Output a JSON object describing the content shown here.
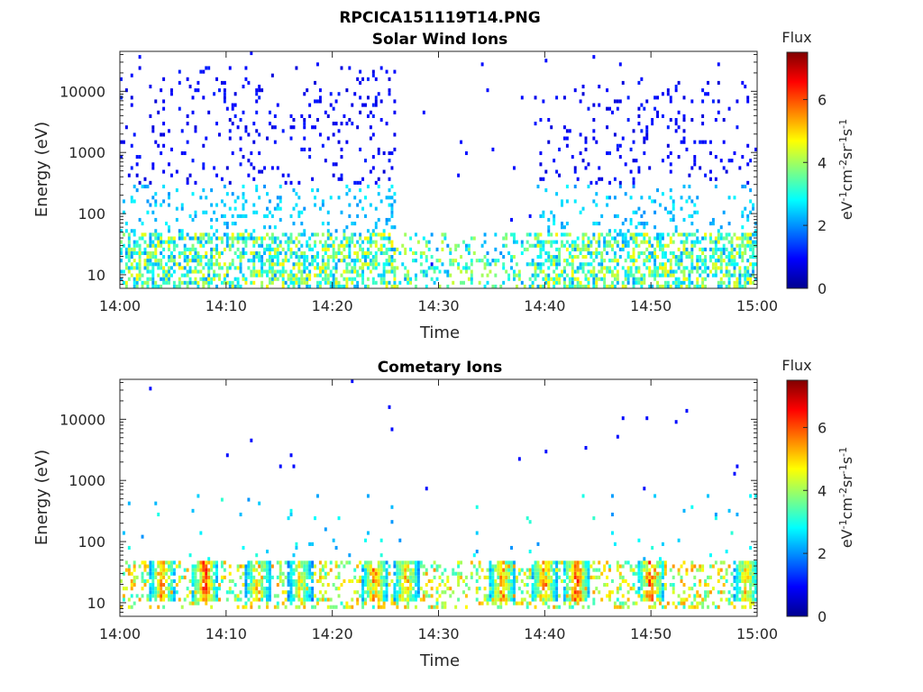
{
  "figure_title": "RPCICA151119T14.PNG",
  "colors": {
    "colormap": [
      "#00008f",
      "#0000ff",
      "#0080ff",
      "#00ffff",
      "#80ff80",
      "#ffff00",
      "#ff8000",
      "#ff0000",
      "#800000"
    ]
  },
  "chart_data": [
    {
      "type": "heatmap",
      "title": "Solar Wind Ions",
      "xlabel": "Time",
      "ylabel": "Energy (eV)",
      "x_range": [
        "14:00",
        "15:00"
      ],
      "x_ticks": [
        "14:00",
        "14:10",
        "14:20",
        "14:30",
        "14:40",
        "14:50",
        "15:00"
      ],
      "y_scale": "log",
      "y_range": [
        6,
        45000
      ],
      "y_ticks": [
        "10",
        "100",
        "1000",
        "10000"
      ],
      "colorbar": {
        "title": "Flux",
        "label": "eV-1cm-2sr-1s-1",
        "range": [
          0,
          7.5
        ],
        "ticks": [
          "0",
          "2",
          "4",
          "6"
        ]
      },
      "activity_periods": [
        {
          "start": "14:00",
          "end": "14:26",
          "energy_range_eV": [
            6,
            26000
          ]
        },
        {
          "start": "14:39",
          "end": "15:00",
          "energy_range_eV": [
            6,
            15000
          ]
        }
      ],
      "typical_flux_low_energy": 4,
      "typical_flux_high_energy": 1
    },
    {
      "type": "heatmap",
      "title": "Cometary Ions",
      "xlabel": "Time",
      "ylabel": "Energy (eV)",
      "x_range": [
        "14:00",
        "15:00"
      ],
      "x_ticks": [
        "14:00",
        "14:10",
        "14:20",
        "14:30",
        "14:40",
        "14:50",
        "15:00"
      ],
      "y_scale": "log",
      "y_range": [
        6,
        45000
      ],
      "y_ticks": [
        "10",
        "100",
        "1000",
        "10000"
      ],
      "colorbar": {
        "title": "Flux",
        "label": "eV-1cm-2sr-1s-1",
        "range": [
          0,
          7.5
        ],
        "ticks": [
          "0",
          "2",
          "4",
          "6"
        ]
      },
      "peak_flux_bursts": [
        {
          "time": "14:04",
          "energy_eV": 25,
          "flux": 6.5
        },
        {
          "time": "14:08",
          "energy_eV": 25,
          "flux": 7
        },
        {
          "time": "14:13",
          "energy_eV": 25,
          "flux": 6
        },
        {
          "time": "14:17",
          "energy_eV": 25,
          "flux": 5.5
        },
        {
          "time": "14:24",
          "energy_eV": 25,
          "flux": 6.5
        },
        {
          "time": "14:27",
          "energy_eV": 25,
          "flux": 6
        },
        {
          "time": "14:36",
          "energy_eV": 25,
          "flux": 6.5
        },
        {
          "time": "14:40",
          "energy_eV": 25,
          "flux": 6.5
        },
        {
          "time": "14:43",
          "energy_eV": 25,
          "flux": 7
        },
        {
          "time": "14:50",
          "energy_eV": 25,
          "flux": 7
        },
        {
          "time": "14:59",
          "energy_eV": 25,
          "flux": 6
        }
      ],
      "typical_flux_low_energy": 5
    }
  ]
}
